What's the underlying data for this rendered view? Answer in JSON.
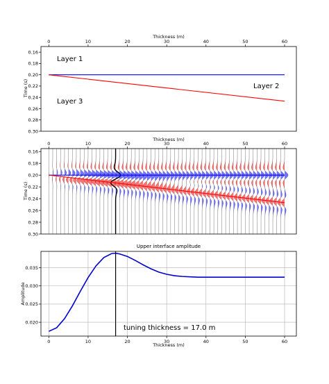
{
  "chart_data": [
    {
      "type": "line",
      "xlabel": "Thickness (m)",
      "ylabel": "Time (s)",
      "xlim": [
        -2,
        63
      ],
      "ylim": [
        0.3,
        0.15
      ],
      "x_ticks": [
        0,
        10,
        20,
        30,
        40,
        50,
        60
      ],
      "y_ticks": [
        0.16,
        0.18,
        0.2,
        0.22,
        0.24,
        0.26,
        0.28,
        0.3
      ],
      "x_axis_position": "top",
      "grid": false,
      "series": [
        {
          "color": "#0000ff",
          "x": [
            0,
            60
          ],
          "y": [
            0.2,
            0.2
          ]
        },
        {
          "color": "#ff0000",
          "x": [
            0,
            60
          ],
          "y": [
            0.2,
            0.2468
          ]
        }
      ],
      "annotations": [
        {
          "text": "Layer 1",
          "x": 2,
          "y": 0.168
        },
        {
          "text": "Layer 2",
          "x": 52,
          "y": 0.22
        },
        {
          "text": "Layer 3",
          "x": 2,
          "y": 0.246
        }
      ]
    },
    {
      "type": "line",
      "xlabel": "Thickness (m)",
      "ylabel": "Time (s)",
      "xlim": [
        -2,
        63
      ],
      "ylim": [
        0.3,
        0.155
      ],
      "x_ticks": [
        0,
        10,
        20,
        30,
        40,
        50,
        60
      ],
      "y_ticks": [
        0.16,
        0.18,
        0.2,
        0.22,
        0.24,
        0.26,
        0.28,
        0.3
      ],
      "x_axis_position": "top",
      "grid": false,
      "wiggle_traces": {
        "x_start": 0,
        "x_end": 60,
        "x_step": 1,
        "positive_fill": "#0000ff",
        "negative_fill": "#ff0000"
      },
      "series": [
        {
          "color": "#0000ff",
          "x": [
            0,
            60
          ],
          "y": [
            0.2,
            0.2
          ]
        },
        {
          "color": "#ff0000",
          "x": [
            0,
            60
          ],
          "y": [
            0.2,
            0.2468
          ]
        }
      ],
      "highlight_trace_x": 17.0
    },
    {
      "type": "line",
      "title": "Upper interface amplitude",
      "xlabel": "Thickness (m)",
      "ylabel": "Amplitude",
      "xlim": [
        -2,
        63
      ],
      "ylim": [
        0.0162,
        0.0395
      ],
      "x_ticks": [
        0,
        10,
        20,
        30,
        40,
        50,
        60
      ],
      "y_ticks": [
        0.02,
        0.025,
        0.03,
        0.035
      ],
      "y_tick_labels": [
        "0.020",
        "0.025",
        "0.030",
        "0.035"
      ],
      "grid": true,
      "series": [
        {
          "color": "#0000cc",
          "x": [
            0,
            2,
            4,
            6,
            8,
            10,
            12,
            14,
            16,
            17,
            18,
            20,
            22,
            24,
            26,
            28,
            30,
            32,
            34,
            36,
            38,
            40,
            45,
            50,
            55,
            60
          ],
          "y": [
            0.0175,
            0.0185,
            0.021,
            0.0245,
            0.0285,
            0.0323,
            0.0355,
            0.0378,
            0.0389,
            0.039,
            0.0388,
            0.0381,
            0.037,
            0.0358,
            0.0347,
            0.0338,
            0.0332,
            0.0328,
            0.0326,
            0.0325,
            0.0324,
            0.0324,
            0.0324,
            0.0324,
            0.0324,
            0.0324
          ]
        }
      ],
      "vline_x": 17.0,
      "annotations": [
        {
          "text": "tuning thickness = 17.0 m",
          "x": 19,
          "y": 0.0182
        }
      ]
    }
  ]
}
